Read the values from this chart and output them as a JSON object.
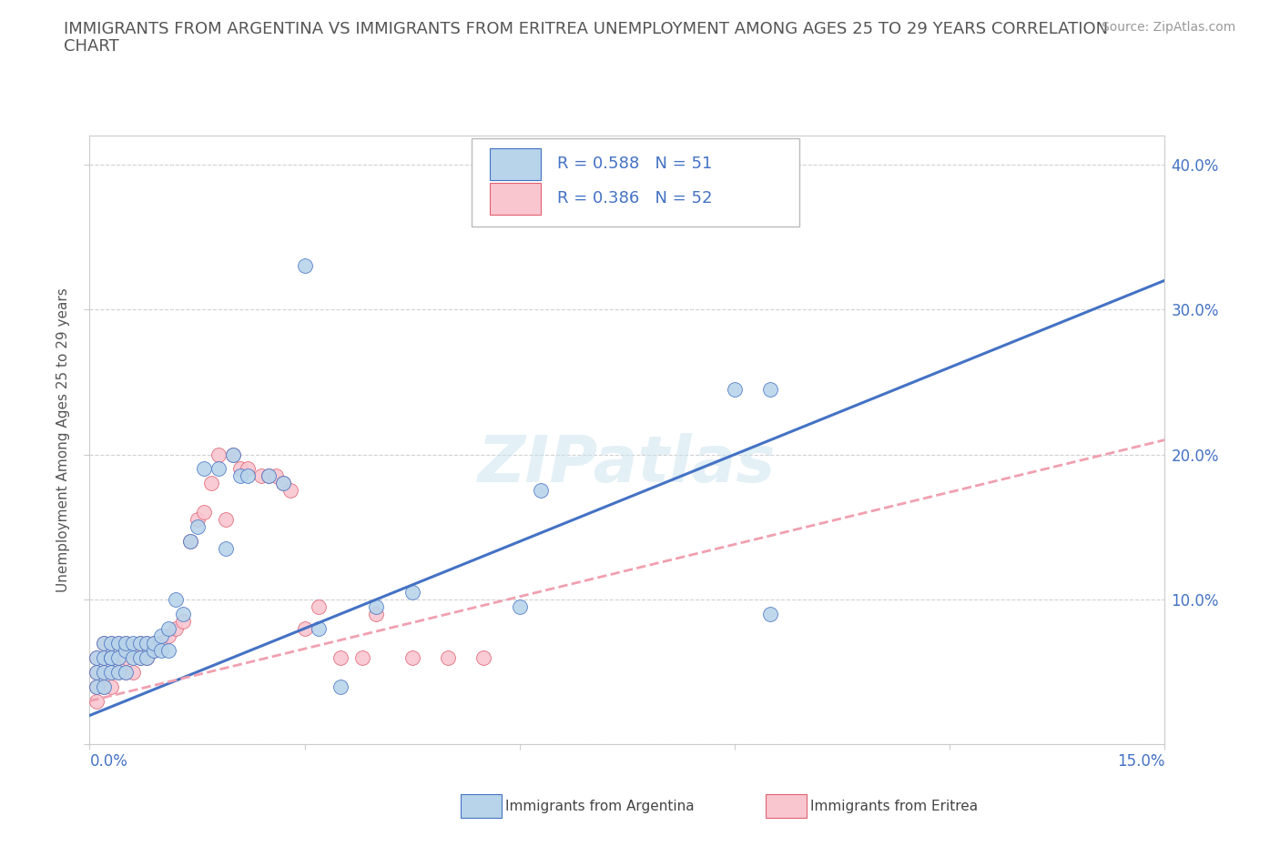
{
  "title_line1": "IMMIGRANTS FROM ARGENTINA VS IMMIGRANTS FROM ERITREA UNEMPLOYMENT AMONG AGES 25 TO 29 YEARS CORRELATION",
  "title_line2": "CHART",
  "source": "Source: ZipAtlas.com",
  "ylabel": "Unemployment Among Ages 25 to 29 years",
  "argentina_R": 0.588,
  "argentina_N": 51,
  "eritrea_R": 0.386,
  "eritrea_N": 52,
  "argentina_color": "#b8d4ea",
  "argentina_edge_color": "#4472c4",
  "eritrea_color": "#f9c6d0",
  "eritrea_edge_color": "#e06070",
  "argentina_line_color": "#4472c4",
  "eritrea_line_color": "#f0a0b0",
  "background_color": "#ffffff",
  "grid_color": "#cccccc",
  "title_color": "#555555",
  "axis_label_color": "#4472c4",
  "watermark": "ZIPatlas",
  "xlim": [
    0.0,
    0.15
  ],
  "ylim": [
    0.0,
    0.42
  ],
  "arg_trend_y0": 0.02,
  "arg_trend_y1": 0.32,
  "eri_trend_y0": 0.03,
  "eri_trend_y1": 0.21,
  "argentina_x": [
    0.001,
    0.001,
    0.001,
    0.002,
    0.002,
    0.002,
    0.002,
    0.003,
    0.003,
    0.003,
    0.003,
    0.004,
    0.004,
    0.004,
    0.005,
    0.005,
    0.005,
    0.006,
    0.006,
    0.007,
    0.007,
    0.008,
    0.008,
    0.009,
    0.009,
    0.01,
    0.01,
    0.011,
    0.011,
    0.012,
    0.013,
    0.014,
    0.015,
    0.016,
    0.018,
    0.019,
    0.02,
    0.021,
    0.022,
    0.025,
    0.027,
    0.03,
    0.032,
    0.035,
    0.04,
    0.045,
    0.06,
    0.063,
    0.09,
    0.095,
    0.095
  ],
  "argentina_y": [
    0.04,
    0.05,
    0.06,
    0.04,
    0.05,
    0.06,
    0.07,
    0.05,
    0.06,
    0.06,
    0.07,
    0.05,
    0.06,
    0.07,
    0.05,
    0.065,
    0.07,
    0.06,
    0.07,
    0.06,
    0.07,
    0.06,
    0.07,
    0.065,
    0.07,
    0.065,
    0.075,
    0.065,
    0.08,
    0.1,
    0.09,
    0.14,
    0.15,
    0.19,
    0.19,
    0.135,
    0.2,
    0.185,
    0.185,
    0.185,
    0.18,
    0.33,
    0.08,
    0.04,
    0.095,
    0.105,
    0.095,
    0.175,
    0.245,
    0.245,
    0.09
  ],
  "eritrea_x": [
    0.001,
    0.001,
    0.001,
    0.001,
    0.002,
    0.002,
    0.002,
    0.002,
    0.003,
    0.003,
    0.003,
    0.003,
    0.004,
    0.004,
    0.004,
    0.005,
    0.005,
    0.005,
    0.006,
    0.006,
    0.007,
    0.007,
    0.008,
    0.008,
    0.009,
    0.009,
    0.01,
    0.011,
    0.012,
    0.013,
    0.014,
    0.015,
    0.016,
    0.017,
    0.018,
    0.019,
    0.02,
    0.021,
    0.022,
    0.024,
    0.025,
    0.026,
    0.027,
    0.028,
    0.03,
    0.032,
    0.035,
    0.038,
    0.04,
    0.045,
    0.05,
    0.055
  ],
  "eritrea_y": [
    0.03,
    0.04,
    0.05,
    0.06,
    0.04,
    0.05,
    0.06,
    0.07,
    0.04,
    0.05,
    0.06,
    0.07,
    0.05,
    0.06,
    0.07,
    0.05,
    0.06,
    0.07,
    0.05,
    0.065,
    0.06,
    0.07,
    0.06,
    0.07,
    0.065,
    0.07,
    0.07,
    0.075,
    0.08,
    0.085,
    0.14,
    0.155,
    0.16,
    0.18,
    0.2,
    0.155,
    0.2,
    0.19,
    0.19,
    0.185,
    0.185,
    0.185,
    0.18,
    0.175,
    0.08,
    0.095,
    0.06,
    0.06,
    0.09,
    0.06,
    0.06,
    0.06
  ]
}
